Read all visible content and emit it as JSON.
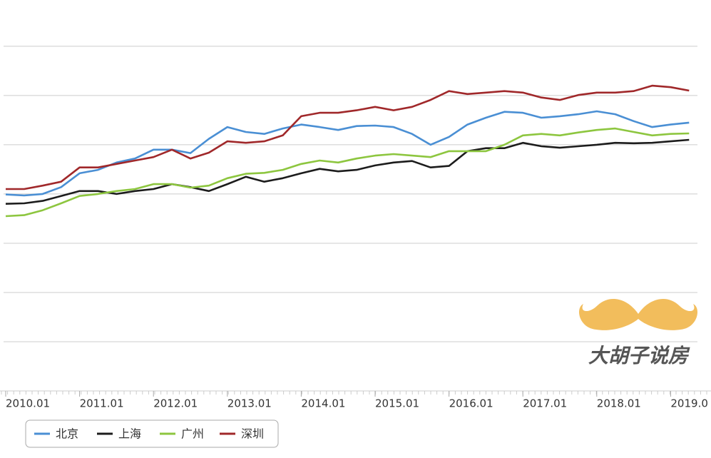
{
  "chart_data": {
    "type": "line",
    "x": [
      "2010.01",
      "2010.04",
      "2010.07",
      "2010.10",
      "2011.01",
      "2011.04",
      "2011.07",
      "2011.10",
      "2012.01",
      "2012.04",
      "2012.07",
      "2012.10",
      "2013.01",
      "2013.04",
      "2013.07",
      "2013.10",
      "2014.01",
      "2014.04",
      "2014.07",
      "2014.10",
      "2015.01",
      "2015.04",
      "2015.07",
      "2015.10",
      "2016.01",
      "2016.04",
      "2016.07",
      "2016.10",
      "2017.01",
      "2017.04",
      "2017.07",
      "2017.10",
      "2018.01",
      "2018.04",
      "2018.07",
      "2018.10",
      "2019.01",
      "2019.04"
    ],
    "series": [
      {
        "name": "北京",
        "color": "#4a8fd4",
        "values": [
          3.99,
          3.97,
          4.0,
          4.14,
          4.42,
          4.49,
          4.64,
          4.72,
          4.9,
          4.9,
          4.83,
          5.12,
          5.36,
          5.26,
          5.22,
          5.33,
          5.41,
          5.36,
          5.3,
          5.38,
          5.39,
          5.36,
          5.22,
          5.0,
          5.16,
          5.41,
          5.55,
          5.67,
          5.65,
          5.55,
          5.58,
          5.62,
          5.68,
          5.62,
          5.48,
          5.36,
          5.41,
          5.45
        ]
      },
      {
        "name": "上海",
        "color": "#1c1c1c",
        "values": [
          3.8,
          3.81,
          3.86,
          3.96,
          4.06,
          4.06,
          4.0,
          4.06,
          4.1,
          4.2,
          4.14,
          4.06,
          4.2,
          4.35,
          4.25,
          4.32,
          4.42,
          4.51,
          4.46,
          4.49,
          4.58,
          4.64,
          4.67,
          4.54,
          4.57,
          4.87,
          4.93,
          4.93,
          5.04,
          4.97,
          4.94,
          4.97,
          5.0,
          5.04,
          5.03,
          5.04,
          5.07,
          5.1
        ]
      },
      {
        "name": "广州",
        "color": "#8dc63f",
        "values": [
          3.55,
          3.57,
          3.67,
          3.81,
          3.96,
          4.0,
          4.06,
          4.1,
          4.2,
          4.2,
          4.13,
          4.17,
          4.32,
          4.41,
          4.43,
          4.49,
          4.61,
          4.68,
          4.64,
          4.72,
          4.78,
          4.81,
          4.78,
          4.75,
          4.87,
          4.87,
          4.87,
          5.0,
          5.19,
          5.22,
          5.19,
          5.25,
          5.3,
          5.33,
          5.26,
          5.19,
          5.22,
          5.23
        ]
      },
      {
        "name": "深圳",
        "color": "#a0282a",
        "values": [
          4.1,
          4.1,
          4.17,
          4.25,
          4.54,
          4.54,
          4.61,
          4.68,
          4.75,
          4.9,
          4.72,
          4.84,
          5.07,
          5.04,
          5.07,
          5.19,
          5.58,
          5.65,
          5.65,
          5.7,
          5.77,
          5.7,
          5.77,
          5.91,
          6.09,
          6.03,
          6.06,
          6.09,
          6.06,
          5.96,
          5.91,
          6.01,
          6.06,
          6.06,
          6.09,
          6.2,
          6.17,
          6.1
        ]
      }
    ],
    "xtick_labels": [
      "2010.01",
      "2011.01",
      "2012.01",
      "2013.01",
      "2014.01",
      "2015.01",
      "2016.01",
      "2017.01",
      "2018.01",
      "2019.0"
    ],
    "ylim": [
      0,
      7.94
    ],
    "grid_lines": [
      1,
      2,
      3,
      4,
      5,
      6,
      7
    ],
    "grid": true,
    "legend": "bottom-left"
  },
  "watermark": "大胡子说房"
}
